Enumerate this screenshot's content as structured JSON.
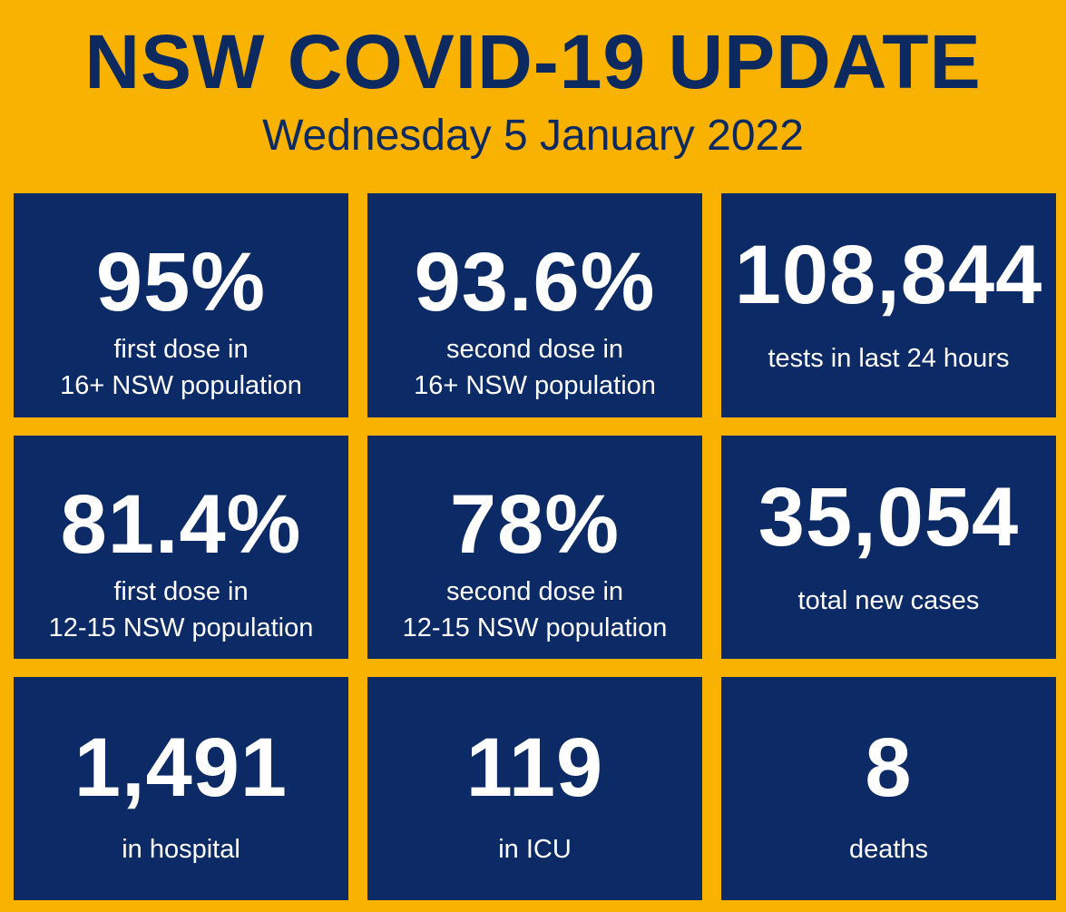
{
  "header": {
    "title": "NSW COVID-19 UPDATE",
    "date": "Wednesday 5 January 2022"
  },
  "colors": {
    "background": "#F9B200",
    "tile": "#0C2A66",
    "title_text": "#0C2A5F",
    "tile_text": "#FFFFFF"
  },
  "stats": [
    {
      "value": "95%",
      "label": "first dose in\n16+ NSW population"
    },
    {
      "value": "93.6%",
      "label": "second dose in\n16+ NSW population"
    },
    {
      "value": "108,844",
      "label": "tests in last 24 hours"
    },
    {
      "value": "81.4%",
      "label": "first dose in\n12-15 NSW population"
    },
    {
      "value": "78%",
      "label": "second dose in\n12-15 NSW population"
    },
    {
      "value": "35,054",
      "label": "total new cases"
    },
    {
      "value": "1,491",
      "label": "in hospital"
    },
    {
      "value": "119",
      "label": "in ICU"
    },
    {
      "value": "8",
      "label": "deaths"
    }
  ]
}
